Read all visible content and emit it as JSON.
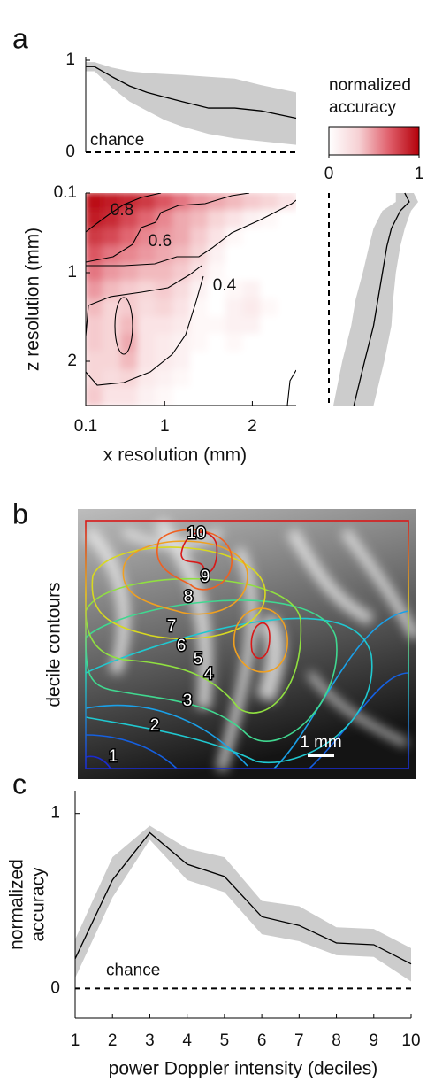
{
  "panel_labels": [
    "a",
    "b",
    "c"
  ],
  "chart_data": [
    {
      "type": "line",
      "x": [
        0.1,
        0.2,
        0.4,
        0.6,
        0.8,
        1.0,
        1.2,
        1.5,
        1.8,
        2.1,
        2.5
      ],
      "values": [
        0.93,
        0.93,
        0.82,
        0.72,
        0.65,
        0.6,
        0.55,
        0.48,
        0.48,
        0.45,
        0.37
      ],
      "lower": [
        0.88,
        0.88,
        0.7,
        0.55,
        0.45,
        0.35,
        0.28,
        0.2,
        0.15,
        0.12,
        0.08
      ],
      "upper": [
        0.98,
        0.98,
        0.92,
        0.88,
        0.86,
        0.85,
        0.84,
        0.82,
        0.8,
        0.73,
        0.65
      ],
      "color": "#000000",
      "band_color": "#cccccc",
      "xlim": [
        0.1,
        2.5
      ],
      "ylim": [
        0,
        1
      ],
      "yticks": [
        0,
        1
      ],
      "chance_level": 0,
      "annotation": "chance"
    },
    {
      "type": "heatmap",
      "x": [
        0.2,
        0.4,
        0.6,
        0.8,
        1.0,
        1.2,
        1.4,
        1.6,
        1.8,
        2.0,
        2.2,
        2.4
      ],
      "y": [
        0.2,
        0.4,
        0.6,
        0.8,
        1.0,
        1.2,
        1.4,
        1.6,
        1.8,
        2.0,
        2.2,
        2.4
      ],
      "z": [
        [
          0.95,
          0.9,
          0.85,
          0.8,
          0.7,
          0.6,
          0.5,
          0.45,
          0.4,
          0.35,
          0.3,
          0.2
        ],
        [
          0.9,
          0.85,
          0.75,
          0.65,
          0.55,
          0.45,
          0.4,
          0.3,
          0.2,
          0.1,
          0.05,
          0
        ],
        [
          0.8,
          0.75,
          0.65,
          0.55,
          0.5,
          0.45,
          0.35,
          0.2,
          0.05,
          0,
          0,
          0
        ],
        [
          0.7,
          0.6,
          0.55,
          0.5,
          0.45,
          0.4,
          0.3,
          0.1,
          0,
          0,
          0,
          0
        ],
        [
          0.6,
          0.5,
          0.45,
          0.4,
          0.4,
          0.35,
          0.2,
          0.05,
          0,
          0,
          0,
          0
        ],
        [
          0.5,
          0.4,
          0.35,
          0.3,
          0.35,
          0.25,
          0.1,
          0,
          0.05,
          0.1,
          0,
          0
        ],
        [
          0.4,
          0.3,
          0.35,
          0.25,
          0.3,
          0.2,
          0.05,
          0,
          0.1,
          0.15,
          0.05,
          0
        ],
        [
          0.35,
          0.3,
          0.4,
          0.2,
          0.2,
          0.15,
          0.05,
          0.05,
          0.1,
          0.1,
          0,
          0
        ],
        [
          0.35,
          0.3,
          0.45,
          0.2,
          0.15,
          0.1,
          0.05,
          0,
          0.05,
          0,
          0,
          0
        ],
        [
          0.3,
          0.3,
          0.4,
          0.2,
          0.15,
          0.1,
          0,
          0,
          0,
          0,
          0,
          0
        ],
        [
          0.3,
          0.25,
          0.3,
          0.15,
          0.1,
          0.05,
          0,
          0,
          0,
          0,
          0,
          0
        ],
        [
          0.35,
          0.2,
          0.2,
          0.1,
          0.05,
          0,
          0,
          0,
          0,
          0,
          0,
          0
        ]
      ],
      "xlim": [
        0.1,
        2.5
      ],
      "ylim": [
        2.5,
        0.1
      ],
      "xticks": [
        0.1,
        1,
        2
      ],
      "yticks": [
        0.1,
        1,
        2
      ],
      "xlabel": "x resolution (mm)",
      "ylabel": "z resolution (mm)",
      "contour_labels": [
        0.8,
        0.6,
        0.4
      ],
      "colorbar": {
        "label": [
          "normalized",
          "accuracy"
        ],
        "clim": [
          0,
          1
        ],
        "ticks": [
          0,
          1
        ],
        "colors": [
          "#ffffff",
          "#f6d0d3",
          "#e0606c",
          "#b4000a"
        ]
      }
    },
    {
      "type": "line",
      "orientation": "vertical",
      "y": [
        0.1,
        0.2,
        0.3,
        0.5,
        0.7,
        1.0,
        1.3,
        1.6,
        2.0,
        2.5
      ],
      "values": [
        0.85,
        0.9,
        0.8,
        0.7,
        0.65,
        0.6,
        0.55,
        0.5,
        0.4,
        0.28
      ],
      "lower": [
        0.75,
        0.75,
        0.6,
        0.5,
        0.45,
        0.38,
        0.3,
        0.25,
        0.15,
        0.05
      ],
      "upper": [
        0.95,
        1.0,
        0.92,
        0.85,
        0.8,
        0.75,
        0.72,
        0.7,
        0.62,
        0.5
      ],
      "color": "#000000",
      "band_color": "#cccccc",
      "xlim": [
        0,
        1
      ],
      "ylim": [
        2.5,
        0.1
      ],
      "chance_level": 0
    },
    {
      "type": "line",
      "x": [
        1,
        2,
        3,
        4,
        5,
        6,
        7,
        8,
        9,
        10
      ],
      "values": [
        0.17,
        0.62,
        0.89,
        0.71,
        0.64,
        0.41,
        0.36,
        0.26,
        0.25,
        0.14
      ],
      "lower": [
        0.06,
        0.52,
        0.85,
        0.62,
        0.55,
        0.31,
        0.27,
        0.19,
        0.18,
        0.04
      ],
      "upper": [
        0.28,
        0.75,
        0.93,
        0.8,
        0.75,
        0.5,
        0.47,
        0.35,
        0.34,
        0.23
      ],
      "color": "#000000",
      "band_color": "#cccccc",
      "xlim": [
        1,
        10
      ],
      "ylim": [
        -0.17,
        1.13
      ],
      "xticks": [
        1,
        2,
        3,
        4,
        5,
        6,
        7,
        8,
        9,
        10
      ],
      "yticks": [
        0,
        1
      ],
      "xlabel": "power Doppler intensity (deciles)",
      "ylabel": [
        "normalized",
        "accuracy"
      ],
      "chance_level": 0,
      "annotation": "chance"
    }
  ],
  "image_panel": {
    "ylabel": "decile contours",
    "contour_labels": [
      1,
      2,
      3,
      4,
      5,
      6,
      7,
      8,
      9,
      10
    ],
    "scale_bar": "1 mm"
  }
}
